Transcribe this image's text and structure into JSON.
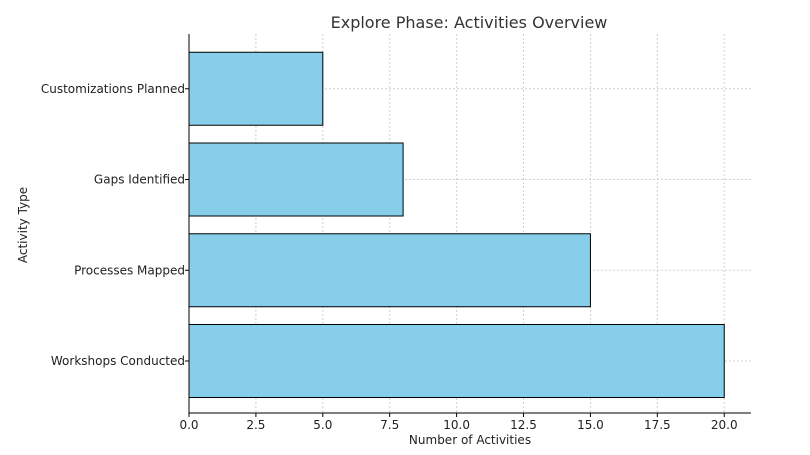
{
  "chart_data": {
    "type": "bar",
    "orientation": "horizontal",
    "title": "Explore Phase: Activities Overview",
    "xlabel": "Number of Activities",
    "ylabel": "Activity Type",
    "categories": [
      "Workshops Conducted",
      "Processes Mapped",
      "Gaps Identified",
      "Customizations Planned"
    ],
    "values": [
      20,
      15,
      8,
      5
    ],
    "xlim": [
      0,
      21
    ],
    "xticks": [
      "0.0",
      "2.5",
      "5.0",
      "7.5",
      "10.0",
      "12.5",
      "15.0",
      "17.5",
      "20.0"
    ],
    "grid": true,
    "colors": {
      "bar_fill": "#87CEEB",
      "bar_edge": "#000000",
      "grid": "#cfcfcf"
    }
  }
}
